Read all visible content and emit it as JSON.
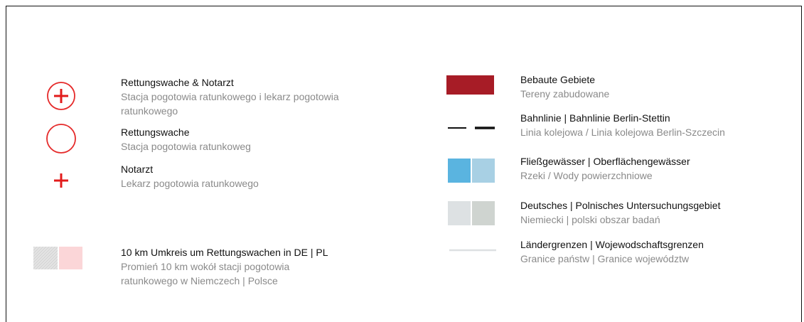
{
  "legend": {
    "left": [
      {
        "title": "Rettungswache & Notarzt",
        "subtitle": "Stacja pogotowia ratunkowego i lekarz pogotowia ratunkowego"
      },
      {
        "title": "Rettungswache",
        "subtitle": "Stacja pogotowia ratunkoweg"
      },
      {
        "title": "Notarzt",
        "subtitle": "Lekarz pogotowia ratunkowego"
      },
      {
        "title": "10 km Umkreis um Rettungswachen in DE | PL",
        "subtitle": "Promień 10 km wokół stacji pogotowia ratunkowego w Niemczech | Polsce"
      }
    ],
    "right": [
      {
        "title": "Bebaute Gebiete",
        "subtitle": "Tereny zabudowane"
      },
      {
        "title": "Bahnlinie | Bahnlinie Berlin-Stettin",
        "subtitle": "Linia kolejowa / Linia kolejowa Berlin-Szczecin"
      },
      {
        "title": "Fließgewässer | Oberflächengewässer",
        "subtitle": "Rzeki / Wody powierzchniowe"
      },
      {
        "title": "Deutsches | Polnisches Untersuchungsgebiet",
        "subtitle": "Niemiecki | polski obszar badań"
      },
      {
        "title": "Ländergrenzen | Wojewodschaftsgrenzen",
        "subtitle": "Granice państw | Granice województw"
      }
    ]
  }
}
